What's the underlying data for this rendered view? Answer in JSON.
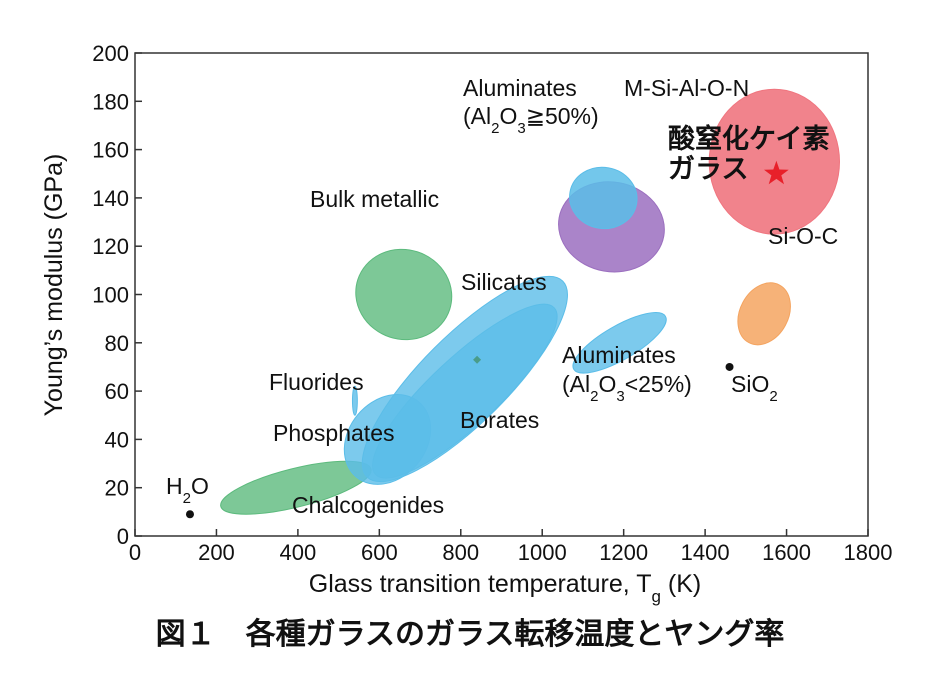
{
  "chart_data": {
    "type": "scatter",
    "xlabel_main": "Glass transition temperature, T",
    "xlabel_sub": "g",
    "xlabel_unit": " (K)",
    "ylabel": "Young’s modulus (GPa)",
    "xlim": [
      0,
      1800
    ],
    "ylim": [
      0,
      200
    ],
    "xticks": [
      "0",
      "200",
      "400",
      "600",
      "800",
      "1000",
      "1200",
      "1400",
      "1600",
      "1800"
    ],
    "yticks": [
      "0",
      "20",
      "40",
      "60",
      "80",
      "100",
      "120",
      "140",
      "160",
      "180",
      "200"
    ],
    "grid": false,
    "caption": "図１　各種ガラスのガラス転移温度とヤング率",
    "regions": [
      {
        "label": "Chalcogenides",
        "color": "#5cba7d",
        "alpha": 0.8,
        "cx": 395,
        "cy": 20,
        "rx": 190,
        "ry": 8,
        "angle": 14
      },
      {
        "label": "Phosphates",
        "color": "#5bbde8",
        "alpha": 0.8,
        "cx": 620,
        "cy": 40,
        "rx": 120,
        "ry": 16,
        "angle": 50
      },
      {
        "label": "Borates",
        "color": "#5bbde8",
        "alpha": 0.8,
        "cx": 810,
        "cy": 65,
        "rx": 340,
        "ry": 18,
        "angle": 45
      },
      {
        "label": "Fluorides",
        "color": "#5bbde8",
        "alpha": 0.8,
        "cx": 540,
        "cy": 56,
        "rx": 6,
        "ry": 6,
        "angle": 0
      },
      {
        "label": "Bulk metallic",
        "color": "#5cba7d",
        "alpha": 0.8,
        "cx": 660,
        "cy": 100,
        "rx": 110,
        "ry": 20,
        "angle": 72
      },
      {
        "label": "Silicates",
        "color": "#5bbde8",
        "alpha": 0.8,
        "cx": 810,
        "cy": 60,
        "rx": 300,
        "ry": 14,
        "angle": 43
      },
      {
        "label": "M-Si-Al-O-N",
        "color": "#9b6fbf",
        "alpha": 0.85,
        "cx": 1170,
        "cy": 128,
        "rx": 110,
        "ry": 22,
        "angle": 80
      },
      {
        "label": "Aluminates (Al2O3≧50%)",
        "color": "#5bbde8",
        "alpha": 0.85,
        "cx": 1150,
        "cy": 140,
        "rx": 75,
        "ry": 14,
        "angle": 80
      },
      {
        "label": "Aluminates (Al2O3<25%)",
        "color": "#5bbde8",
        "alpha": 0.8,
        "cx": 1190,
        "cy": 80,
        "rx": 130,
        "ry": 7,
        "angle": 30
      },
      {
        "label": "Si-O-C",
        "color": "#f4a460",
        "alpha": 0.85,
        "cx": 1545,
        "cy": 92,
        "rx": 80,
        "ry": 10,
        "angle": 62
      },
      {
        "label": "酸窒化ケイ素ガラス",
        "color": "#f0757f",
        "alpha": 0.9,
        "cx": 1570,
        "cy": 155,
        "rx": 160,
        "ry": 30,
        "angle": 0
      }
    ],
    "points": [
      {
        "label": "H2O",
        "x": 135,
        "y": 9
      },
      {
        "label": "SiO2",
        "x": 1460,
        "y": 70
      }
    ],
    "highlight": {
      "label": "酸窒化ケイ素ガラス",
      "x": 1575,
      "y": 150,
      "marker": "star",
      "color": "#e8202a"
    },
    "annotations": {
      "bulk_metallic": "Bulk metallic",
      "silicates": "Silicates",
      "fluorides": "Fluorides",
      "phosphates": "Phosphates",
      "borates": "Borates",
      "chalcogenides": "Chalcogenides",
      "aluminates_hi_line1": "Aluminates",
      "aluminates_hi_line2_pre": "(Al",
      "aluminates_hi_line2_sub1": "2",
      "aluminates_hi_line2_mid": "O",
      "aluminates_hi_line2_sub2": "3",
      "aluminates_hi_line2_post": "≧50%)",
      "msialon": "M-Si-Al-O-N",
      "aluminates_lo_line1": "Aluminates",
      "aluminates_lo_line2_pre": "(Al",
      "aluminates_lo_line2_sub1": "2",
      "aluminates_lo_line2_mid": "O",
      "aluminates_lo_line2_sub2": "3",
      "aluminates_lo_line2_post": "<25%)",
      "sioc": "Si-O-C",
      "sio2_pre": "SiO",
      "sio2_sub": "2",
      "h2o_pre": "H",
      "h2o_sub": "2",
      "h2o_post": "O",
      "jp_line1": "酸窒化ケイ素",
      "jp_line2": "ガラス"
    }
  }
}
